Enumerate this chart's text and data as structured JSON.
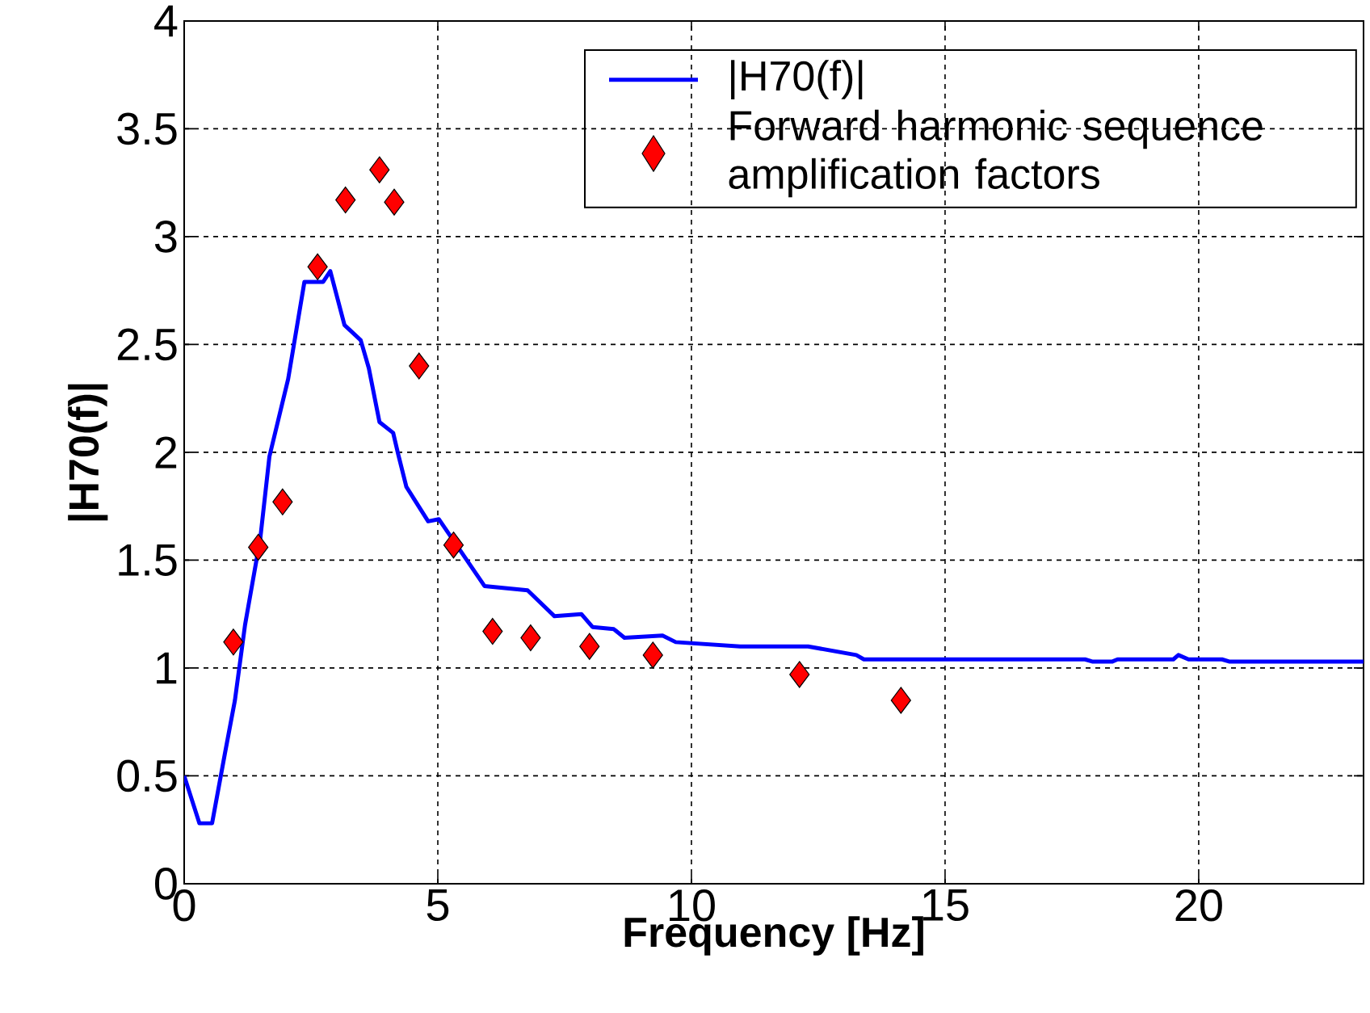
{
  "chart_data": {
    "type": "line",
    "xlabel": "Frequency [Hz]",
    "ylabel": "|H70(f)|",
    "xlim": [
      0,
      23.25
    ],
    "ylim": [
      0,
      4
    ],
    "xticks": [
      0,
      5,
      10,
      15,
      20
    ],
    "yticks": [
      0,
      0.5,
      1,
      1.5,
      2,
      2.5,
      3,
      3.5,
      4
    ],
    "grid": true,
    "legend": "top right",
    "series": [
      {
        "name": "|H70(f)|",
        "color": "#0000ff",
        "line_style": "solid",
        "marker": "none",
        "x": [
          0,
          0.3,
          0.55,
          0.8,
          1.0,
          1.2,
          1.5,
          1.68,
          2.05,
          2.37,
          2.74,
          2.88,
          3.16,
          3.48,
          3.64,
          3.85,
          4.12,
          4.22,
          4.38,
          4.81,
          5.02,
          5.92,
          6.77,
          7.3,
          7.83,
          8.05,
          8.47,
          8.68,
          9.43,
          9.69,
          10.96,
          12.3,
          13.25,
          13.4,
          17.76,
          17.9,
          18.3,
          18.4,
          19.5,
          19.6,
          19.8,
          20.46,
          20.6,
          23.25
        ],
        "values": [
          0.5,
          0.28,
          0.28,
          0.6,
          0.85,
          1.2,
          1.6,
          1.98,
          2.34,
          2.79,
          2.79,
          2.84,
          2.59,
          2.52,
          2.39,
          2.14,
          2.09,
          1.99,
          1.84,
          1.68,
          1.69,
          1.38,
          1.36,
          1.24,
          1.25,
          1.19,
          1.18,
          1.14,
          1.15,
          1.12,
          1.1,
          1.1,
          1.06,
          1.04,
          1.04,
          1.03,
          1.03,
          1.04,
          1.04,
          1.06,
          1.04,
          1.04,
          1.03,
          1.03
        ]
      },
      {
        "name": "Forward harmonic sequence amplification factors",
        "type": "scatter",
        "color": "#ff0000",
        "marker": "diamond",
        "x": [
          0.97,
          1.46,
          1.94,
          2.63,
          3.18,
          3.85,
          4.14,
          4.63,
          5.31,
          6.08,
          6.83,
          7.99,
          9.24,
          12.13,
          14.13
        ],
        "values": [
          1.12,
          1.56,
          1.77,
          2.86,
          3.17,
          3.31,
          3.16,
          2.4,
          1.57,
          1.17,
          1.14,
          1.1,
          1.06,
          0.97,
          0.85
        ]
      }
    ]
  }
}
